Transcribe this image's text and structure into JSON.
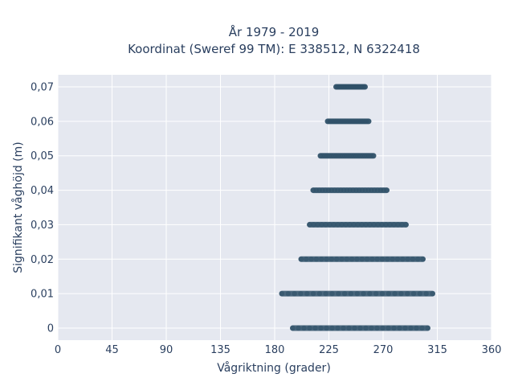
{
  "chart_data": {
    "type": "scatter",
    "title_lines": [
      "År 1979 - 2019",
      "Koordinat (Sweref 99 TM): E 338512, N 6322418"
    ],
    "xlabel": "Vågriktning (grader)",
    "ylabel": "Signifikant våghöjd (m)",
    "xlim": [
      0,
      360
    ],
    "ylim": [
      -0.0035,
      0.0735
    ],
    "xticks": [
      0,
      45,
      90,
      135,
      180,
      225,
      270,
      315,
      360
    ],
    "xtick_labels": [
      "0",
      "45",
      "90",
      "135",
      "180",
      "225",
      "270",
      "315",
      "360"
    ],
    "yticks": [
      0,
      0.01,
      0.02,
      0.03,
      0.04,
      0.05,
      0.06,
      0.07
    ],
    "ytick_labels": [
      "0",
      "0,01",
      "0,02",
      "0,03",
      "0,04",
      "0,05",
      "0,06",
      "0,07"
    ],
    "grid": true,
    "marker_color": "#2f5068",
    "plot_background": "#e5e8f0",
    "grid_color": "#ffffff",
    "bands": [
      {
        "y": 0.0,
        "x_min": 195,
        "x_max": 307
      },
      {
        "y": 0.01,
        "x_min": 186,
        "x_max": 311
      },
      {
        "y": 0.02,
        "x_min": 202,
        "x_max": 303
      },
      {
        "y": 0.03,
        "x_min": 209,
        "x_max": 289
      },
      {
        "y": 0.04,
        "x_min": 212,
        "x_max": 273
      },
      {
        "y": 0.05,
        "x_min": 218,
        "x_max": 262
      },
      {
        "y": 0.06,
        "x_min": 224,
        "x_max": 258
      },
      {
        "y": 0.07,
        "x_min": 231,
        "x_max": 255
      }
    ]
  }
}
